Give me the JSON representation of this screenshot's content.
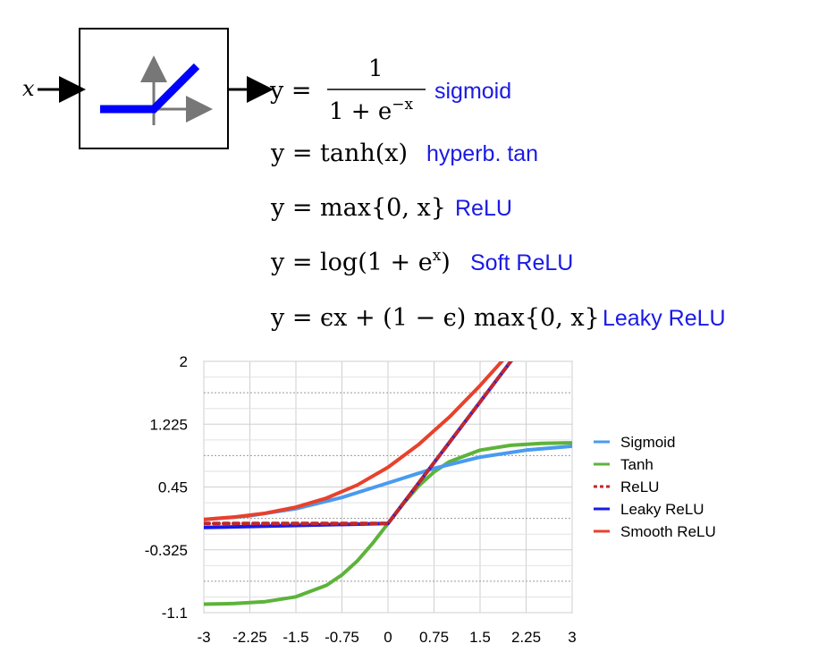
{
  "diagram": {
    "input_label": "x",
    "formulas": [
      {
        "lhs": "y = ",
        "rhs_num": "1",
        "rhs_den": "1 + e",
        "rhs_den_exp": "−x",
        "name": "sigmoid"
      },
      {
        "expr": "y = tanh(x)",
        "name": "hyperb. tan"
      },
      {
        "expr": "y = max{0, x}",
        "name": "ReLU"
      },
      {
        "expr": "y = log(1 + e",
        "expr_exp": "x",
        "expr_tail": ")",
        "name": "Soft ReLU"
      },
      {
        "expr": "y = ϵx + (1 − ϵ) max{0, x}",
        "name": "Leaky ReLU"
      }
    ],
    "colors": {
      "label": "#1a1ae6",
      "relu_icon": "#0000ff",
      "axes_icon": "#777777"
    }
  },
  "chart_data": {
    "type": "line",
    "xlim": [
      -3,
      3
    ],
    "ylim": [
      -1.1,
      2
    ],
    "x_ticks": [
      "-3",
      "-2.25",
      "-1.5",
      "-0.75",
      "0",
      "0.75",
      "1.5",
      "2.25",
      "3"
    ],
    "y_ticks": [
      "2",
      "1.225",
      "0.45",
      "-0.325",
      "-1.1"
    ],
    "grid": true,
    "legend_position": "right",
    "series": [
      {
        "name": "Sigmoid",
        "color": "#4a9af0",
        "dash": false,
        "x": [
          -3,
          -2.25,
          -1.5,
          -0.75,
          0,
          0.75,
          1.5,
          2.25,
          3
        ],
        "y": [
          0.047,
          0.095,
          0.182,
          0.321,
          0.5,
          0.679,
          0.818,
          0.905,
          0.953
        ]
      },
      {
        "name": "Tanh",
        "color": "#5db33a",
        "dash": false,
        "x": [
          -3,
          -2.5,
          -2,
          -1.5,
          -1,
          -0.75,
          -0.5,
          -0.25,
          0,
          0.25,
          0.5,
          0.75,
          1,
          1.5,
          2,
          2.5,
          3
        ],
        "y": [
          -0.995,
          -0.987,
          -0.964,
          -0.905,
          -0.762,
          -0.635,
          -0.462,
          -0.245,
          0,
          0.245,
          0.462,
          0.635,
          0.762,
          0.905,
          0.964,
          0.987,
          0.995
        ]
      },
      {
        "name": "ReLU",
        "color": "#c0282d",
        "dash": true,
        "x": [
          -3,
          0,
          2.05
        ],
        "y": [
          0,
          0,
          2.05
        ]
      },
      {
        "name": "Leaky ReLU",
        "color": "#1a1ae6",
        "dash": false,
        "x": [
          -3,
          0,
          2.05
        ],
        "y": [
          -0.05,
          0,
          2.05
        ]
      },
      {
        "name": "Smooth ReLU",
        "color": "#e8412c",
        "dash": false,
        "x": [
          -3,
          -2.5,
          -2,
          -1.5,
          -1,
          -0.5,
          0,
          0.5,
          1,
          1.5,
          1.95
        ],
        "y": [
          0.049,
          0.079,
          0.127,
          0.201,
          0.313,
          0.474,
          0.693,
          0.974,
          1.313,
          1.701,
          2.08
        ]
      }
    ]
  }
}
